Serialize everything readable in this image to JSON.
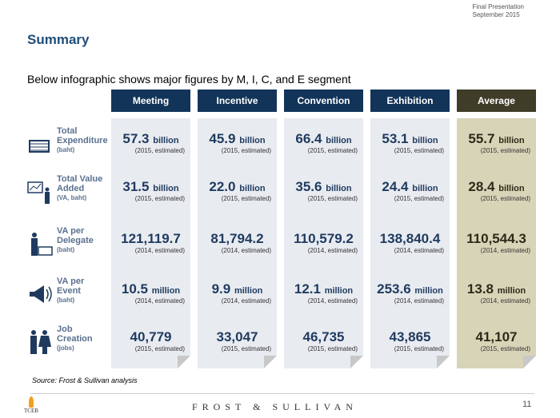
{
  "header": {
    "line1": "Final Presentation",
    "line2": "September 2015"
  },
  "title": "Summary",
  "subtitle": "Below infographic shows major figures by M, I, C, and E segment",
  "rows": [
    {
      "label": "Total Expenditure",
      "sub": "(baht)",
      "icon": "money-stack-icon"
    },
    {
      "label": "Total Value Added",
      "sub": "(VA, baht)",
      "icon": "presentation-icon"
    },
    {
      "label": "VA per Delegate",
      "sub": "(baht)",
      "icon": "delegate-money-icon"
    },
    {
      "label": "VA per Event",
      "sub": "(baht)",
      "icon": "megaphone-icon"
    },
    {
      "label": "Job Creation",
      "sub": "(jobs)",
      "icon": "people-icon"
    }
  ],
  "columns": [
    {
      "name": "Meeting",
      "cells": [
        {
          "v": "57.3",
          "u": "billion",
          "n": "(2015, estimated)"
        },
        {
          "v": "31.5",
          "u": "billion",
          "n": "(2015, estimated)"
        },
        {
          "v": "121,119.7",
          "u": "",
          "n": "(2014, estimated)"
        },
        {
          "v": "10.5",
          "u": "million",
          "n": "(2014, estimated)"
        },
        {
          "v": "40,779",
          "u": "",
          "n": "(2015, estimated)"
        }
      ]
    },
    {
      "name": "Incentive",
      "cells": [
        {
          "v": "45.9",
          "u": "billion",
          "n": "(2015, estimated)"
        },
        {
          "v": "22.0",
          "u": "billion",
          "n": "(2015, estimated)"
        },
        {
          "v": "81,794.2",
          "u": "",
          "n": "(2014, estimated)"
        },
        {
          "v": "9.9",
          "u": "million",
          "n": "(2014, estimated)"
        },
        {
          "v": "33,047",
          "u": "",
          "n": "(2015, estimated)"
        }
      ]
    },
    {
      "name": "Convention",
      "cells": [
        {
          "v": "66.4",
          "u": "billion",
          "n": "(2015, estimated)"
        },
        {
          "v": "35.6",
          "u": "billion",
          "n": "(2015, estimated)"
        },
        {
          "v": "110,579.2",
          "u": "",
          "n": "(2014, estimated)"
        },
        {
          "v": "12.1",
          "u": "million",
          "n": "(2014, estimated)"
        },
        {
          "v": "46,735",
          "u": "",
          "n": "(2015, estimated)"
        }
      ]
    },
    {
      "name": "Exhibition",
      "cells": [
        {
          "v": "53.1",
          "u": "billion",
          "n": "(2015, estimated)"
        },
        {
          "v": "24.4",
          "u": "billion",
          "n": "(2015, estimated)"
        },
        {
          "v": "138,840.4",
          "u": "",
          "n": "(2014, estimated)"
        },
        {
          "v": "253.6",
          "u": "million",
          "n": "(2014, estimated)"
        },
        {
          "v": "43,865",
          "u": "",
          "n": "(2015, estimated)"
        }
      ]
    },
    {
      "name": "Average",
      "cells": [
        {
          "v": "55.7",
          "u": "billion",
          "n": "(2015, estimated)"
        },
        {
          "v": "28.4",
          "u": "billion",
          "n": "(2015, estimated)"
        },
        {
          "v": "110,544.3",
          "u": "",
          "n": "(2014, estimated)"
        },
        {
          "v": "13.8",
          "u": "million",
          "n": "(2014, estimated)"
        },
        {
          "v": "41,107",
          "u": "",
          "n": "(2015, estimated)"
        }
      ]
    }
  ],
  "source": "Source: Frost & Sullivan analysis",
  "footer": {
    "brand": "FROST & SULLIVAN",
    "page": "11",
    "logo": "TCEB"
  }
}
